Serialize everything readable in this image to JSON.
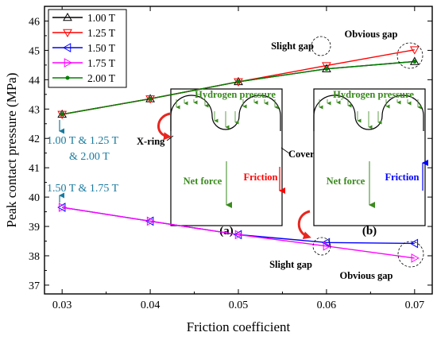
{
  "chart_data": {
    "type": "line",
    "title": "",
    "xlabel": "Friction coefficient",
    "ylabel": "Peak contact pressure (MPa)",
    "xlim": [
      0.028,
      0.072
    ],
    "ylim": [
      36.7,
      46.5
    ],
    "x_ticks": [
      "0.03",
      "0.04",
      "0.05",
      "0.06",
      "0.07"
    ],
    "y_ticks": [
      "37",
      "38",
      "39",
      "40",
      "41",
      "42",
      "43",
      "44",
      "45",
      "46"
    ],
    "x": [
      0.03,
      0.04,
      0.05,
      0.06,
      0.07
    ],
    "grid": false,
    "legend_position": "top-left",
    "series": [
      {
        "name": "1.00 T",
        "color": "#000000",
        "marker": "triangle-up",
        "values": [
          42.82,
          43.35,
          43.93,
          44.37,
          44.62
        ]
      },
      {
        "name": "1.25 T",
        "color": "#ff0000",
        "marker": "triangle-down",
        "values": [
          42.82,
          43.35,
          43.93,
          44.48,
          45.02
        ]
      },
      {
        "name": "1.50 T",
        "color": "#0000ff",
        "marker": "triangle-left",
        "values": [
          39.65,
          39.18,
          38.72,
          38.45,
          38.42
        ]
      },
      {
        "name": "1.75 T",
        "color": "#ff00ff",
        "marker": "triangle-right",
        "values": [
          39.65,
          39.18,
          38.72,
          38.33,
          37.92
        ]
      },
      {
        "name": "2.00 T",
        "color": "#008000",
        "marker": "dot",
        "values": [
          42.82,
          43.35,
          43.93,
          44.37,
          44.62
        ]
      }
    ],
    "annotations": {
      "upper_group": "1.00 T & 1.25 T",
      "upper_group_line2": "& 2.00 T",
      "lower_group": "1.50 T & 1.75 T",
      "slight_gap_upper": "Slight gap",
      "obvious_gap_upper": "Obvious gap",
      "slight_gap_lower": "Slight gap",
      "obvious_gap_lower": "Obvious gap"
    },
    "inset_a": {
      "pressure_label": "Hydrogen pressure",
      "xring_label": "X-ring",
      "cover_label": "Cover",
      "net_force_label": "Net force",
      "friction_label": "Friction",
      "panel_label": "(a)"
    },
    "inset_b": {
      "pressure_label": "Hydrogen pressure",
      "net_force_label": "Net force",
      "friction_label": "Friction",
      "panel_label": "(b)"
    },
    "colors": {
      "annotation_blue": "#1a7a9e",
      "inset_green": "#3a8a1e",
      "arrow_red": "#e8261f"
    }
  }
}
